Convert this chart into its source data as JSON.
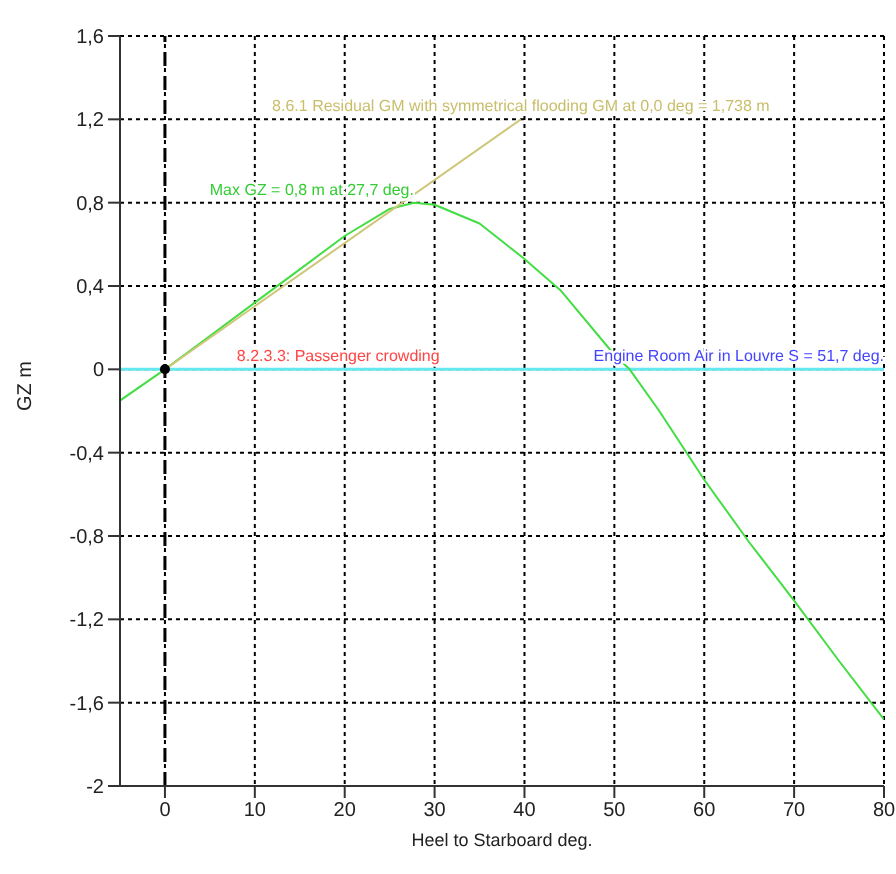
{
  "chart_data": {
    "type": "line",
    "xlabel": "Heel to Starboard deg.",
    "ylabel": "GZ m",
    "xlim": [
      -5,
      80
    ],
    "xticks": [
      0,
      10,
      20,
      30,
      40,
      50,
      60,
      70,
      80
    ],
    "ylim": [
      -2,
      1.6
    ],
    "yticks": [
      {
        "value": -2,
        "label": "-2"
      },
      {
        "value": -1.6,
        "label": "-1,6"
      },
      {
        "value": -1.2,
        "label": "-1,2"
      },
      {
        "value": -0.8,
        "label": "-0,8"
      },
      {
        "value": -0.4,
        "label": "-0,4"
      },
      {
        "value": 0,
        "label": "0"
      },
      {
        "value": 0.4,
        "label": "0,4"
      },
      {
        "value": 0.8,
        "label": "0,8"
      },
      {
        "value": 1.2,
        "label": "1,2"
      },
      {
        "value": 1.6,
        "label": "1,6"
      }
    ],
    "grid": true,
    "marker": "none",
    "line_style": "solid",
    "series": [
      {
        "color": "#44dd44",
        "x": [
          -5,
          0,
          5,
          10,
          15,
          20,
          25,
          27.7,
          30,
          35,
          40,
          44,
          50,
          51.7,
          55,
          60,
          65,
          70,
          75,
          80
        ],
        "values": [
          -0.15,
          0,
          0.16,
          0.32,
          0.48,
          0.64,
          0.77,
          0.8,
          0.79,
          0.7,
          0.53,
          0.38,
          0.07,
          0,
          -0.2,
          -0.53,
          -0.83,
          -1.11,
          -1.4,
          -1.68
        ]
      },
      {
        "color": "#cfc67a",
        "x": [
          0,
          39.6
        ],
        "values": [
          0,
          1.2
        ]
      },
      {
        "type": "scatter",
        "color": "#000000",
        "marker": "circle",
        "x": [
          0
        ],
        "values": [
          0
        ]
      }
    ],
    "ref_lines": [
      {
        "axis": "x",
        "value": 0,
        "color": "#000000",
        "line_style": "dashed"
      },
      {
        "axis": "y",
        "value": 0,
        "color": "#66e8f0",
        "line_style": "solid"
      }
    ],
    "annotations": [
      {
        "text": "Max GZ = 0,8 m at 27,7 deg.",
        "x": 27.7,
        "y": 0.8
      },
      {
        "text": "8.6.1 Residual GM with symmetrical flooding GM at 0,0 deg = 1,738 m",
        "x": 39.6,
        "y": 1.2
      },
      {
        "text": "8.2.3.3: Passenger crowding",
        "x": 8,
        "y": 0
      },
      {
        "text": "Engine Room Air in Louvre S = 51,7 deg.",
        "x": 80,
        "y": 0
      }
    ]
  }
}
